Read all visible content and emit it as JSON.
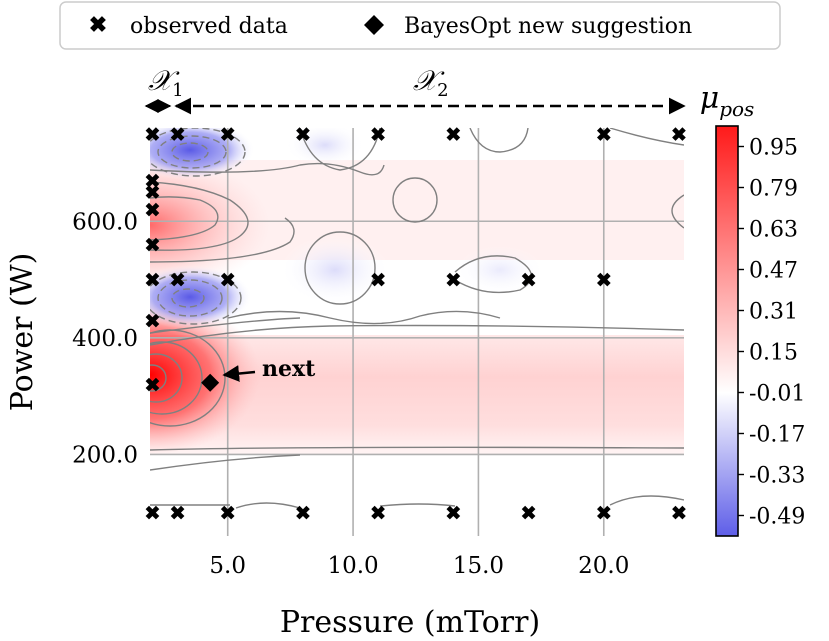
{
  "legend": {
    "items": [
      {
        "label": "observed data",
        "marker": "x"
      },
      {
        "label": "BayesOpt new suggestion",
        "marker": "diamond"
      }
    ]
  },
  "regions": {
    "x1": "𝒳",
    "x1_sub": "1",
    "x2": "𝒳",
    "x2_sub": "2"
  },
  "annotation": {
    "text": "next"
  },
  "colorbar": {
    "label": "μ",
    "label_sub": "pos",
    "ticks": [
      "0.95",
      "0.79",
      "0.63",
      "0.47",
      "0.31",
      "0.15",
      "-0.01",
      "-0.17",
      "-0.33",
      "-0.49"
    ],
    "tick_values": [
      0.95,
      0.79,
      0.63,
      0.47,
      0.31,
      0.15,
      -0.01,
      -0.17,
      -0.33,
      -0.49
    ],
    "vmin": -0.57,
    "vmax": 1.03,
    "colors": {
      "low": "#5e5ee8",
      "mid": "#ffffff",
      "high": "#ff1a1a"
    }
  },
  "chart_data": {
    "type": "heatmap",
    "title": "",
    "xlabel": "Pressure (mTorr)",
    "ylabel": "Power (W)",
    "xlim": [
      1.9,
      23.2
    ],
    "ylim": [
      60,
      760
    ],
    "xticks": [
      5.0,
      10.0,
      15.0,
      20.0
    ],
    "xtick_labels": [
      "5.0",
      "10.0",
      "15.0",
      "20.0"
    ],
    "yticks": [
      200.0,
      400.0,
      600.0
    ],
    "ytick_labels": [
      "200.0",
      "400.0",
      "600.0"
    ],
    "grid": true,
    "region_split_x": 3.0,
    "observed": [
      {
        "x": 2,
        "y": 750
      },
      {
        "x": 3,
        "y": 750
      },
      {
        "x": 5,
        "y": 750
      },
      {
        "x": 8,
        "y": 750
      },
      {
        "x": 11,
        "y": 750
      },
      {
        "x": 14,
        "y": 750
      },
      {
        "x": 20,
        "y": 750
      },
      {
        "x": 23,
        "y": 750
      },
      {
        "x": 2,
        "y": 670
      },
      {
        "x": 2,
        "y": 650
      },
      {
        "x": 2,
        "y": 620
      },
      {
        "x": 2,
        "y": 560
      },
      {
        "x": 2,
        "y": 500
      },
      {
        "x": 3,
        "y": 500
      },
      {
        "x": 5,
        "y": 500
      },
      {
        "x": 11,
        "y": 500
      },
      {
        "x": 14,
        "y": 500
      },
      {
        "x": 17,
        "y": 500
      },
      {
        "x": 20,
        "y": 500
      },
      {
        "x": 2,
        "y": 430
      },
      {
        "x": 2,
        "y": 320
      },
      {
        "x": 2,
        "y": 100
      },
      {
        "x": 3,
        "y": 100
      },
      {
        "x": 5,
        "y": 100
      },
      {
        "x": 8,
        "y": 100
      },
      {
        "x": 11,
        "y": 100
      },
      {
        "x": 14,
        "y": 100
      },
      {
        "x": 17,
        "y": 100
      },
      {
        "x": 20,
        "y": 100
      },
      {
        "x": 23,
        "y": 100
      }
    ],
    "suggestion": {
      "x": 4.3,
      "y": 323
    },
    "field_features": [
      {
        "type": "peak",
        "x": 2.0,
        "y": 320,
        "value": 0.95
      },
      {
        "type": "peak",
        "x": 2.5,
        "y": 600,
        "value": 0.55
      },
      {
        "type": "trough",
        "x": 4.0,
        "y": 700,
        "value": -0.49
      },
      {
        "type": "trough",
        "x": 3.8,
        "y": 460,
        "value": -0.45
      },
      {
        "type": "trough",
        "x": 9.5,
        "y": 500,
        "value": -0.1
      },
      {
        "type": "trough",
        "x": 9.0,
        "y": 730,
        "value": -0.05
      }
    ]
  }
}
